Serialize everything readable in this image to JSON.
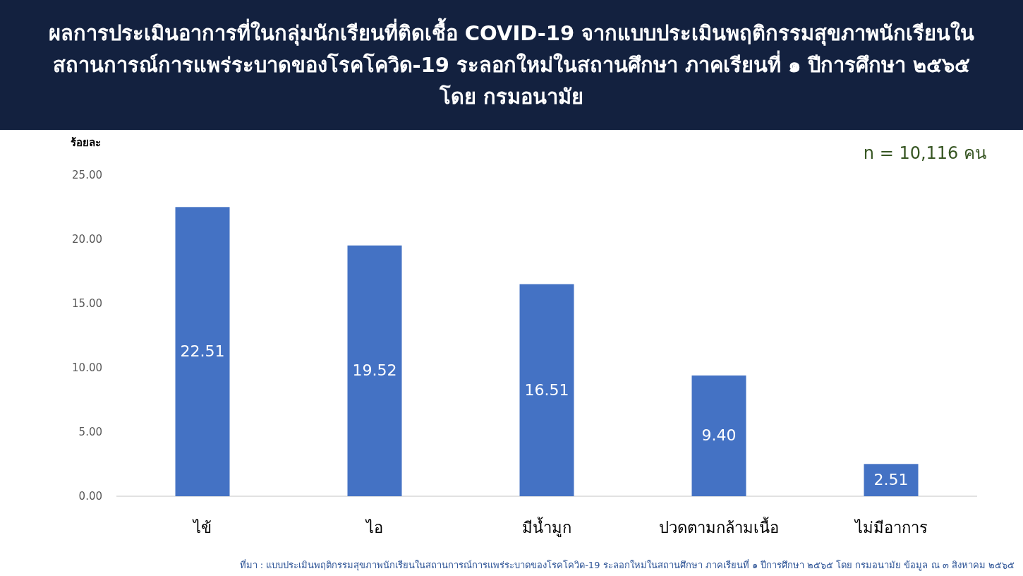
{
  "chart_data": {
    "type": "bar",
    "title": "ผลการประเมินอาการที่ในกลุ่มนักเรียนที่ติดเชื้อ COVID-19 จากแบบประเมินพฤติกรรมสุขภาพนักเรียนในสถานการณ์การแพร่ระบาดของโรคโควิด-19 ระลอกใหม่ในสถานศึกษา ภาคเรียนที่ ๑ ปีการศึกษา ๒๕๖๕ โดย กรมอนามัย",
    "ylabel": "ร้อยละ",
    "categories": [
      "ไข้",
      "ไอ",
      "มีน้ำมูก",
      "ปวดตามกล้ามเนื้อ",
      "ไม่มีอาการ"
    ],
    "values": [
      22.51,
      19.52,
      16.51,
      9.4,
      2.51
    ],
    "value_labels": [
      "22.51",
      "19.52",
      "16.51",
      "9.40",
      "2.51"
    ],
    "color": "#4472c4",
    "ylim": [
      0,
      25
    ],
    "yticks": [
      {
        "value": 0,
        "label": "0.00"
      },
      {
        "value": 5,
        "label": "5.00"
      },
      {
        "value": 10,
        "label": "10.00"
      },
      {
        "value": 15,
        "label": "15.00"
      },
      {
        "value": 20,
        "label": "20.00"
      },
      {
        "value": 25,
        "label": "25.00"
      }
    ],
    "grid": false,
    "annotations": [
      "n = 10,116 คน",
      "ที่มา : แบบประเมินพฤติกรรมสุขภาพนักเรียนในสถานการณ์การแพร่ระบาดของโรคโควิด-19 ระลอกใหม่ในสถานศึกษา ภาคเรียนที่ ๑ ปีการศึกษา ๒๕๖๕ โดย กรมอนามัย ข้อมูล ณ ๓ สิงหาคม ๒๕๖๕"
    ]
  }
}
